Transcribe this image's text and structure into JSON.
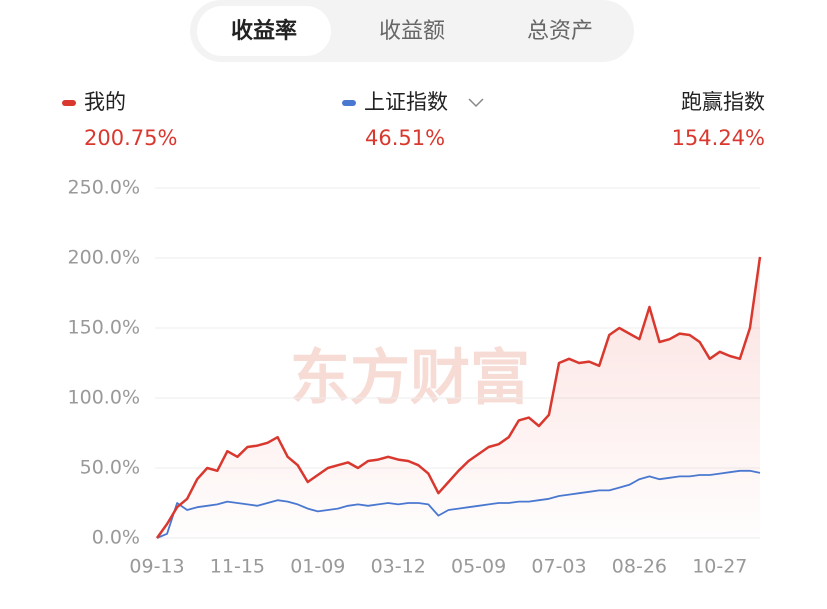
{
  "tabs": [
    "收益率",
    "收益额",
    "总资产"
  ],
  "selected_tab": 0,
  "summary": {
    "series_values": [
      "200.75%",
      "46.51%"
    ],
    "outperform_label": "跑赢指数",
    "outperform_value": "154.24%"
  },
  "watermark": "东方财富",
  "chart_data": {
    "type": "line",
    "categories": [
      "09-13",
      null,
      null,
      null,
      null,
      null,
      null,
      null,
      "11-15",
      null,
      null,
      null,
      null,
      null,
      null,
      null,
      "01-09",
      null,
      null,
      null,
      null,
      null,
      null,
      null,
      "03-12",
      null,
      null,
      null,
      null,
      null,
      null,
      null,
      "05-09",
      null,
      null,
      null,
      null,
      null,
      null,
      null,
      "07-03",
      null,
      null,
      null,
      null,
      null,
      null,
      null,
      "08-26",
      null,
      null,
      null,
      null,
      null,
      null,
      null,
      "10-27",
      null,
      null,
      null,
      null
    ],
    "series": [
      {
        "name": "我的",
        "color": "#d9382f",
        "values": [
          0,
          10,
          22,
          28,
          42,
          50,
          48,
          62,
          58,
          65,
          66,
          68,
          72,
          58,
          52,
          40,
          45,
          50,
          52,
          54,
          50,
          55,
          56,
          58,
          56,
          55,
          52,
          46,
          32,
          40,
          48,
          55,
          60,
          65,
          67,
          72,
          84,
          86,
          80,
          88,
          125,
          128,
          125,
          126,
          123,
          145,
          150,
          146,
          142,
          165,
          140,
          142,
          146,
          145,
          140,
          128,
          133,
          130,
          128,
          150,
          200.75
        ]
      },
      {
        "name": "上证指数",
        "color": "#4a78d0",
        "values": [
          0,
          3,
          25,
          20,
          22,
          23,
          24,
          26,
          25,
          24,
          23,
          25,
          27,
          26,
          24,
          21,
          19,
          20,
          21,
          23,
          24,
          23,
          24,
          25,
          24,
          25,
          25,
          24,
          16,
          20,
          21,
          22,
          23,
          24,
          25,
          25,
          26,
          26,
          27,
          28,
          30,
          31,
          32,
          33,
          34,
          34,
          36,
          38,
          42,
          44,
          42,
          43,
          44,
          44,
          45,
          45,
          46,
          47,
          48,
          48,
          46.51
        ]
      }
    ],
    "ylim": [
      0,
      250
    ],
    "yticks": [
      {
        "value": 0,
        "label": "0.0%"
      },
      {
        "value": 50,
        "label": "50.0%"
      },
      {
        "value": 100,
        "label": "100.0%"
      },
      {
        "value": 150,
        "label": "150.0%"
      },
      {
        "value": 200,
        "label": "200.0%"
      },
      {
        "value": 250,
        "label": "250.0%"
      }
    ],
    "grid": true
  }
}
